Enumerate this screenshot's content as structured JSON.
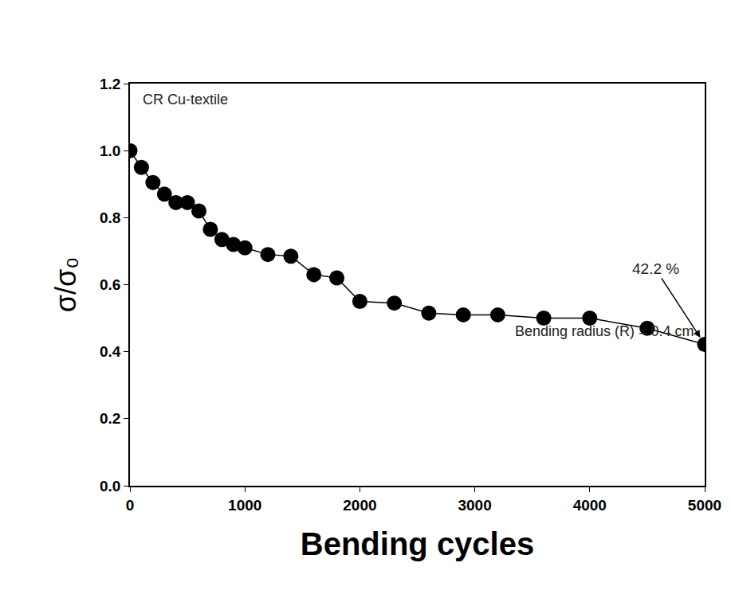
{
  "chart_data": {
    "type": "line",
    "marker": "circle",
    "color": "#000000",
    "x_label": "Bending cycles",
    "y_label": "σ/σ₀",
    "x": [
      0,
      100,
      200,
      300,
      400,
      500,
      600,
      700,
      800,
      900,
      1000,
      1200,
      1400,
      1600,
      1800,
      2000,
      2300,
      2600,
      2900,
      3200,
      3600,
      4000,
      4500,
      5000
    ],
    "values": [
      1.0,
      0.95,
      0.905,
      0.87,
      0.845,
      0.845,
      0.82,
      0.765,
      0.735,
      0.72,
      0.71,
      0.69,
      0.685,
      0.63,
      0.62,
      0.55,
      0.545,
      0.515,
      0.51,
      0.51,
      0.5,
      0.5,
      0.47,
      0.422
    ],
    "xlim": [
      0,
      5000
    ],
    "xticks": [
      0,
      1000,
      2000,
      3000,
      4000,
      5000
    ],
    "ylim": [
      0,
      1.2
    ],
    "yticks": [
      {
        "value": 0,
        "label": "0.0"
      },
      0.2,
      0.4,
      0.6,
      0.8,
      {
        "value": 1,
        "label": "1.0"
      },
      1.2
    ],
    "grid": false,
    "annotations": [
      {
        "text": "CR Cu-textile"
      },
      {
        "text": "42.2 %",
        "x": 5000,
        "y": 0.422
      },
      {
        "text": "Bending radius (R) = 0.4 cm"
      }
    ]
  }
}
